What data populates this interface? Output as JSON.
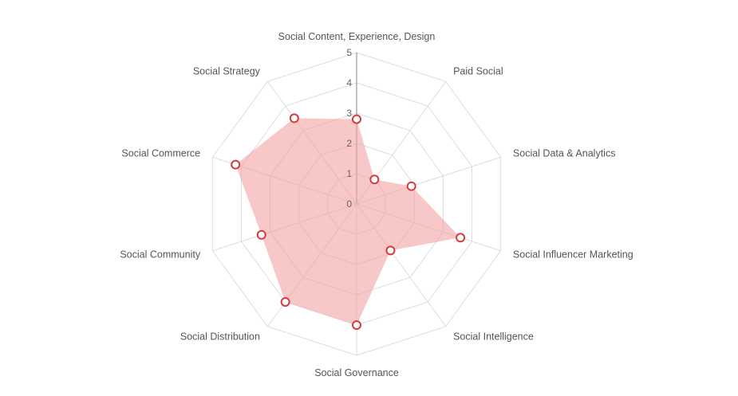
{
  "chart_data": {
    "type": "radar",
    "categories": [
      "Social Content, Experience, Design",
      "Paid Social",
      "Social Data & Analytics",
      "Social Influencer Marketing",
      "Social Intelligence",
      "Social Governance",
      "Social Distribution",
      "Social Community",
      "Social Commerce",
      "Social Strategy"
    ],
    "series": [
      {
        "values": [
          2.8,
          1,
          1.9,
          3.6,
          1.9,
          4,
          4,
          3.3,
          4.2,
          3.5
        ],
        "color": "#f4a1a1",
        "marker_color": "#d43c3c"
      }
    ],
    "r_ticks": [
      "0",
      "1",
      "2",
      "3",
      "4",
      "5"
    ],
    "r_range": [
      0,
      5
    ],
    "grid": true,
    "grid_shape": "polygon"
  }
}
